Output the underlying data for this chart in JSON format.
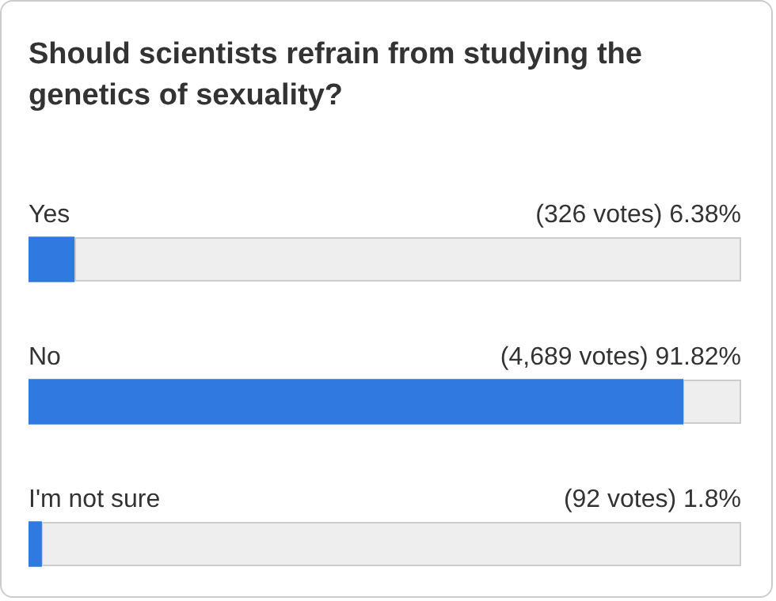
{
  "chart_data": {
    "type": "bar",
    "orientation": "horizontal",
    "title": "Should scientists refrain from studying the genetics of sexuality?",
    "categories": [
      "Yes",
      "No",
      "I'm not sure"
    ],
    "values": [
      6.38,
      91.82,
      1.8
    ],
    "value_labels": [
      "(326 votes) 6.38%",
      "(4,689 votes) 91.82%",
      "(92 votes) 1.8%"
    ],
    "color": "#3079e0",
    "xlim": [
      0,
      100
    ],
    "tick_labels": false,
    "legend": false
  }
}
